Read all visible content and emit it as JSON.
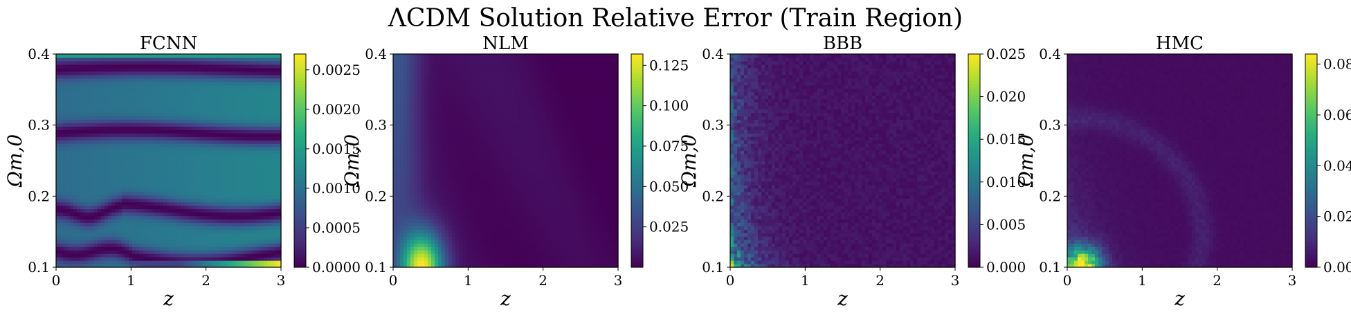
{
  "figure": {
    "suptitle": "ΛCDM Solution Relative Error (Train Region)"
  },
  "chart_data": [
    {
      "type": "heatmap",
      "title": "FCNN",
      "xlabel": "z",
      "ylabel": "Ωm,0",
      "xlim": [
        0,
        3
      ],
      "ylim": [
        0.1,
        0.4
      ],
      "xticks": [
        "0",
        "1",
        "2",
        "3"
      ],
      "yticks": [
        "0.1",
        "0.2",
        "0.3",
        "0.4"
      ],
      "colorbar": {
        "min": 0.0,
        "max": 0.0027,
        "ticks": [
          "0.0000",
          "0.0005",
          "0.0010",
          "0.0015",
          "0.0020",
          "0.0025"
        ]
      },
      "colormap": "viridis",
      "pattern": "horizontal low-error bands near Ωm,0 = 0.115, 0.18, 0.29, 0.38; maximum along bottom edge for z > 1.7"
    },
    {
      "type": "heatmap",
      "title": "NLM",
      "xlabel": "z",
      "ylabel": "Ωm,0",
      "xlim": [
        0,
        3
      ],
      "ylim": [
        0.1,
        0.4
      ],
      "xticks": [
        "0",
        "1",
        "2",
        "3"
      ],
      "yticks": [
        "0.1",
        "0.2",
        "0.3",
        "0.4"
      ],
      "colorbar": {
        "min": 0.0,
        "max": 0.132,
        "ticks": [
          "0.025",
          "0.050",
          "0.075",
          "0.100",
          "0.125"
        ]
      },
      "colormap": "viridis",
      "pattern": "peak near z = 0.4, Ωm,0 = 0.1; elevated strip at low z for Ωm,0 > 0.3"
    },
    {
      "type": "heatmap",
      "title": "BBB",
      "xlabel": "z",
      "ylabel": "Ωm,0",
      "xlim": [
        0,
        3
      ],
      "ylim": [
        0.1,
        0.4
      ],
      "xticks": [
        "0",
        "1",
        "2",
        "3"
      ],
      "yticks": [
        "0.1",
        "0.2",
        "0.3",
        "0.4"
      ],
      "colorbar": {
        "min": 0.0,
        "max": 0.025,
        "ticks": [
          "0.000",
          "0.005",
          "0.010",
          "0.015",
          "0.020",
          "0.025"
        ]
      },
      "colormap": "viridis",
      "pattern": "noisy; higher error at low z, especially near Ωm,0 = 0.1"
    },
    {
      "type": "heatmap",
      "title": "HMC",
      "xlabel": "z",
      "ylabel": "Ωm,0",
      "xlim": [
        0,
        3
      ],
      "ylim": [
        0.1,
        0.4
      ],
      "xticks": [
        "0",
        "1",
        "2",
        "3"
      ],
      "yticks": [
        "0.1",
        "0.2",
        "0.3",
        "0.4"
      ],
      "colorbar": {
        "min": 0.0,
        "max": 0.084,
        "ticks": [
          "0.00",
          "0.02",
          "0.04",
          "0.06",
          "0.08"
        ]
      },
      "colormap": "viridis",
      "pattern": "peak near z = 0.2, Ωm,0 = 0.1; faint arc structures elsewhere"
    }
  ]
}
